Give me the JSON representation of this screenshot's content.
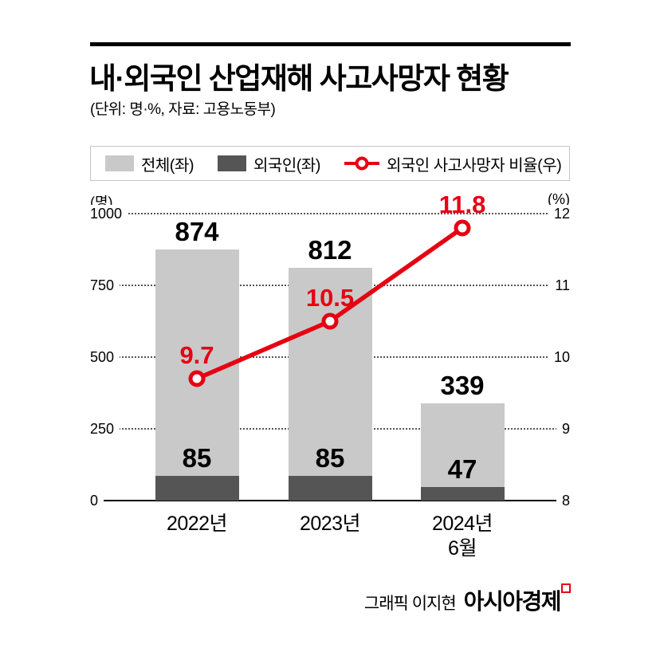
{
  "page": {
    "title": "내·외국인 산업재해 사고사망자 현황",
    "subtitle": "(단위: 명·%, 자료: 고용노동부)",
    "footer": {
      "credit": "그래픽 이지현",
      "brand": "아시아경제"
    }
  },
  "colors": {
    "bar_total": "#c9c9c9",
    "bar_foreign": "#555555",
    "line": "#e60012",
    "rule": "#000000",
    "background": "#ffffff"
  },
  "chart_data": {
    "type": "bar+line",
    "title": "내·외국인 산업재해 사고사망자 현황",
    "categories": [
      "2022년",
      "2023년",
      "2024년 6월"
    ],
    "category_lines": [
      [
        "2022년"
      ],
      [
        "2023년"
      ],
      [
        "2024년",
        "6월"
      ]
    ],
    "left_axis": {
      "unit": "(명)",
      "min": 0,
      "max": 1000,
      "ticks": [
        1000,
        750,
        500,
        250,
        0
      ]
    },
    "right_axis": {
      "unit": "(%)",
      "min": 8,
      "max": 12,
      "ticks": [
        12,
        11,
        10,
        9,
        8
      ]
    },
    "grid": "horizontal-dotted",
    "legend_position": "top",
    "series": [
      {
        "name": "전체(좌)",
        "type": "bar",
        "axis": "left",
        "color": "#c9c9c9",
        "values": [
          874,
          812,
          339
        ],
        "labels": [
          "874",
          "812",
          "339"
        ]
      },
      {
        "name": "외국인(좌)",
        "type": "bar",
        "axis": "left",
        "color": "#555555",
        "values": [
          85,
          85,
          47
        ],
        "labels": [
          "85",
          "85",
          "47"
        ]
      },
      {
        "name": "외국인 사고사망자 비율(우)",
        "type": "line",
        "axis": "right",
        "color": "#e60012",
        "values": [
          9.7,
          10.5,
          11.8
        ],
        "labels": [
          "9.7",
          "10.5",
          "11.8"
        ]
      }
    ]
  }
}
